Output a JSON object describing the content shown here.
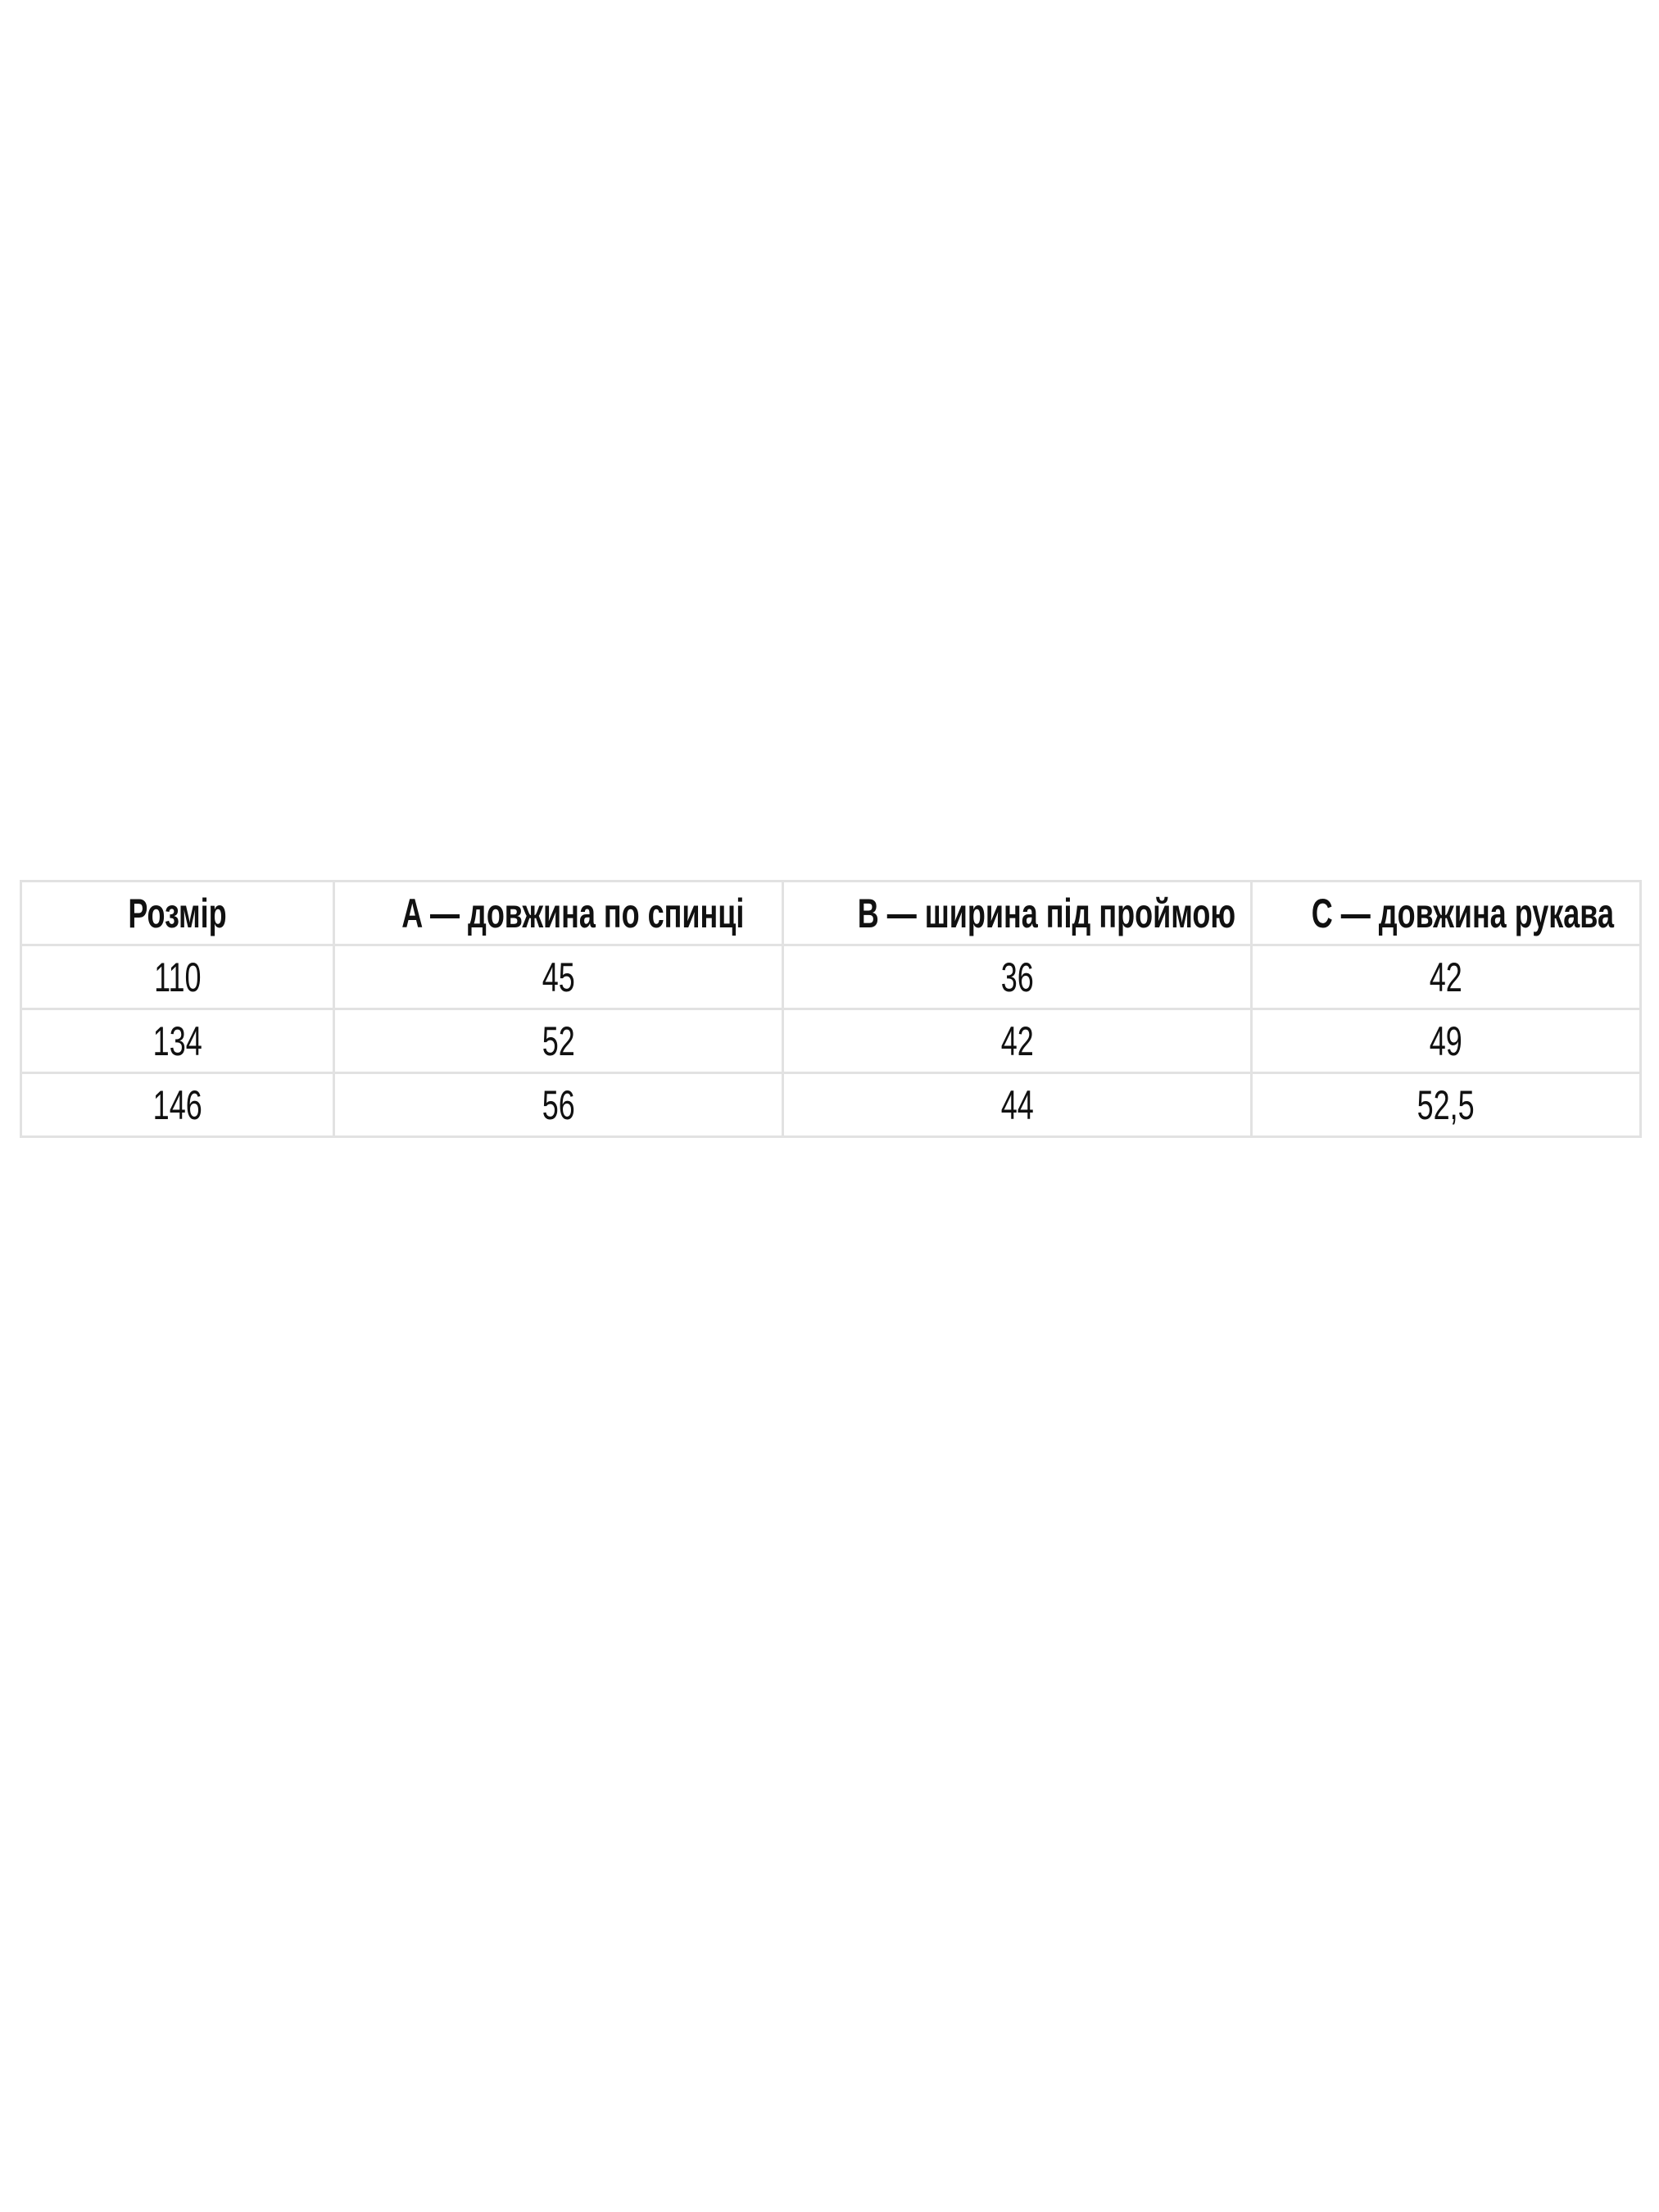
{
  "size_table": {
    "headers": [
      "Розмір",
      "A — довжина по спинці",
      "B — ширина під проймою",
      "C — довжина рукава"
    ],
    "rows": [
      [
        "110",
        "45",
        "36",
        "42"
      ],
      [
        "134",
        "52",
        "42",
        "49"
      ],
      [
        "146",
        "56",
        "44",
        "52,5"
      ]
    ]
  }
}
